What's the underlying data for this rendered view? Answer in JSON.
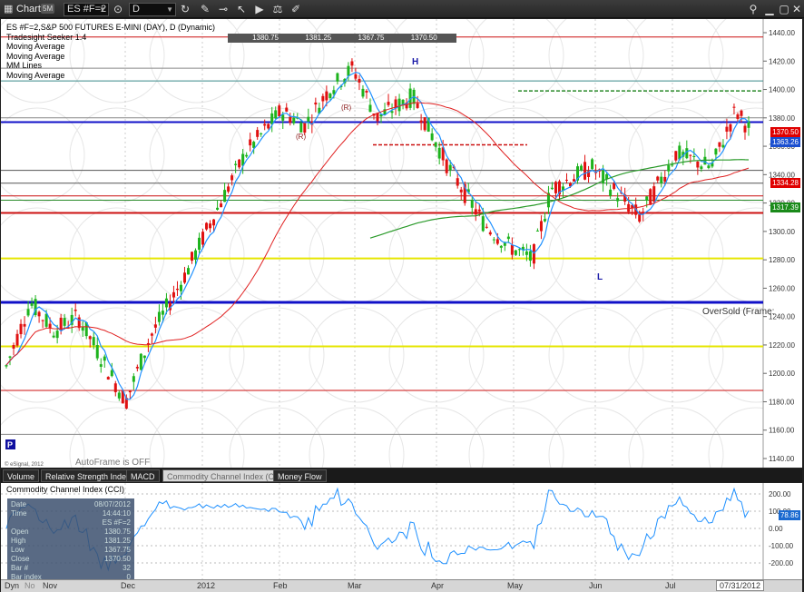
{
  "window": {
    "title": "Chart",
    "badge": "5M"
  },
  "toolbar": {
    "symbol": "ES #F=2",
    "interval": "D"
  },
  "chart": {
    "legend": [
      "ES #F=2,S&P 500 FUTURES E-MINI (DAY), D (Dynamic)",
      "Tradesight Seeker 1.4",
      "Moving Average",
      "Moving Average",
      "MM Lines",
      "Moving Average"
    ],
    "ohlc": [
      "1380.75",
      "1381.25",
      "1367.75",
      "1370.50"
    ],
    "price_labels": [
      {
        "text": "1370.50",
        "bg": "#e00000",
        "price": 1370.5
      },
      {
        "text": "1363.26",
        "bg": "#1a4fd0",
        "price": 1363.26
      },
      {
        "text": "1334.28",
        "bg": "#e00000",
        "price": 1334.28
      },
      {
        "text": "1317.39",
        "bg": "#1a8a1a",
        "price": 1317.39
      }
    ],
    "y_ticks": [
      "1440.00",
      "1420.00",
      "1400.00",
      "1380.00",
      "1360.00",
      "1340.00",
      "1320.00",
      "1300.00",
      "1280.00",
      "1260.00",
      "1240.00",
      "1220.00",
      "1200.00",
      "1180.00",
      "1160.00",
      "1140.00"
    ],
    "annotations": {
      "high": "H",
      "low": "L",
      "r1": "(R)",
      "r2": "(R)",
      "oversold": "OverSold (Frame:",
      "p_marker": "P",
      "autoframe": "AutoFrame is OFF",
      "copyright": "© eSignal, 2012"
    }
  },
  "tabs": [
    "Volume",
    "Relative Strength Index",
    "MACD",
    "Commodity Channel Index (CCI)",
    "Money Flow"
  ],
  "active_tab": 3,
  "cci": {
    "title": "Commodity Channel Index (CCI)",
    "y_ticks": [
      "200.00",
      "100.00",
      "0.00",
      "-100.00",
      "-200.00"
    ],
    "value_label": "78.86",
    "value_color": "#1a6ad0"
  },
  "cursor_window": {
    "rows": [
      {
        "label": "Date",
        "value": "08/07/2012"
      },
      {
        "label": "Time",
        "value": "14:44:10"
      },
      {
        "label": "",
        "value": "ES #F=2"
      },
      {
        "label": "Open",
        "value": "1380.75"
      },
      {
        "label": "High",
        "value": "1381.25"
      },
      {
        "label": "Low",
        "value": "1367.75"
      },
      {
        "label": "Close",
        "value": "1370.50"
      },
      {
        "label": "Bar #",
        "value": "32"
      },
      {
        "label": "Bar index",
        "value": "0"
      }
    ],
    "footer": "Tradesight Seeker 1.4"
  },
  "time_axis": {
    "labels": [
      "Dec",
      "2012",
      "Feb",
      "Mar",
      "Apr",
      "May",
      "Jun",
      "Jul"
    ],
    "left_labels": [
      "Dyn",
      "No",
      "Nov"
    ],
    "current": "07/31/2012"
  },
  "colors": {
    "up": "#1db31d",
    "down": "#e01010",
    "ma_fast": "#1e90ff",
    "ma_mid": "#e02020",
    "ma_slow": "#2a9a2a",
    "mm_blue": "#1010c8",
    "mm_red": "#cc1010",
    "mm_yellow": "#e6e600",
    "mm_green": "#1a8a1a"
  }
}
